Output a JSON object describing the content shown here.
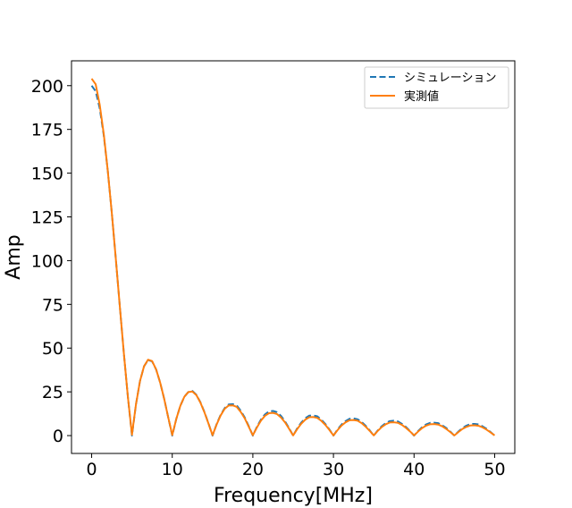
{
  "chart_data": {
    "type": "line",
    "xlabel": "Frequency[MHz]",
    "ylabel": "Amp",
    "xlim": [
      -2.5,
      52.5
    ],
    "ylim": [
      -10.2,
      214.2
    ],
    "xticks": [
      "0",
      "10",
      "20",
      "30",
      "40",
      "50"
    ],
    "yticks": [
      "0",
      "25",
      "50",
      "75",
      "100",
      "125",
      "150",
      "175",
      "200"
    ],
    "legend_position": "top-right",
    "grid": false,
    "series": [
      {
        "name": "シミュレーション",
        "color": "#1f77b4",
        "style": "dashed",
        "x": [
          0,
          0.5,
          1,
          1.5,
          2,
          2.5,
          3,
          3.5,
          4,
          4.5,
          5,
          5.5,
          6,
          6.5,
          7,
          7.5,
          8,
          8.5,
          9,
          9.5,
          10,
          10.5,
          11,
          11.5,
          12,
          12.5,
          13,
          13.5,
          14,
          14.5,
          15,
          15.5,
          16,
          16.5,
          17,
          17.5,
          18,
          18.5,
          19,
          19.5,
          20,
          20.5,
          21,
          21.5,
          22,
          22.5,
          23,
          23.5,
          24,
          24.5,
          25,
          25.5,
          26,
          26.5,
          27,
          27.5,
          28,
          28.5,
          29,
          29.5,
          30,
          30.5,
          31,
          31.5,
          32,
          32.5,
          33,
          33.5,
          34,
          34.5,
          35,
          35.5,
          36,
          36.5,
          37,
          37.5,
          38,
          38.5,
          39,
          39.5,
          40,
          40.5,
          41,
          41.5,
          42,
          42.5,
          43,
          43.5,
          44,
          44.5,
          45,
          45.5,
          46,
          46.5,
          47,
          47.5,
          48,
          48.5,
          49,
          49.5,
          50
        ],
        "y": [
          200.0,
          196.8,
          187.1,
          171.7,
          151.4,
          127.3,
          100.9,
          73.6,
          46.8,
          21.9,
          0.0,
          17.9,
          31.2,
          39.6,
          43.2,
          42.4,
          37.8,
          30.3,
          21.0,
          10.4,
          0.0,
          9.5,
          17.0,
          22.2,
          24.9,
          25.5,
          23.3,
          19.0,
          13.4,
          6.9,
          0.0,
          6.5,
          11.8,
          15.7,
          17.8,
          18.0,
          17.2,
          14.2,
          10.3,
          5.3,
          0.0,
          5.0,
          9.1,
          12.1,
          13.8,
          14.1,
          13.4,
          11.2,
          8.1,
          4.2,
          0.0,
          4.1,
          7.4,
          9.9,
          11.4,
          11.5,
          11.0,
          9.1,
          6.6,
          3.5,
          0.0,
          3.4,
          6.3,
          8.3,
          9.6,
          9.8,
          9.3,
          7.8,
          5.6,
          3.0,
          0.0,
          3.0,
          5.4,
          7.2,
          8.3,
          8.5,
          8.1,
          6.7,
          4.9,
          2.6,
          0.0,
          2.6,
          4.8,
          6.4,
          7.3,
          7.4,
          7.1,
          5.9,
          4.3,
          2.3,
          0.0,
          2.3,
          4.3,
          5.7,
          6.6,
          6.7,
          6.4,
          5.3,
          3.9,
          2.0,
          0.0
        ]
      },
      {
        "name": "実測値",
        "color": "#ff7f0e",
        "style": "solid",
        "x": [
          0,
          0.5,
          1,
          1.5,
          2,
          2.5,
          3,
          3.5,
          4,
          4.5,
          5,
          5.5,
          6,
          6.5,
          7,
          7.5,
          8,
          8.5,
          9,
          9.5,
          10,
          10.5,
          11,
          11.5,
          12,
          12.5,
          13,
          13.5,
          14,
          14.5,
          15,
          15.5,
          16,
          16.5,
          17,
          17.5,
          18,
          18.5,
          19,
          19.5,
          20,
          20.5,
          21,
          21.5,
          22,
          22.5,
          23,
          23.5,
          24,
          24.5,
          25,
          25.5,
          26,
          26.5,
          27,
          27.5,
          28,
          28.5,
          29,
          29.5,
          30,
          30.5,
          31,
          31.5,
          32,
          32.5,
          33,
          33.5,
          34,
          34.5,
          35,
          35.5,
          36,
          36.5,
          37,
          37.5,
          38,
          38.5,
          39,
          39.5,
          40,
          40.5,
          41,
          41.5,
          42,
          42.5,
          43,
          43.5,
          44,
          44.5,
          45,
          45.5,
          46,
          46.5,
          47,
          47.5,
          48,
          48.5,
          49,
          49.5,
          50
        ],
        "y": [
          204.0,
          200.8,
          189.1,
          172.5,
          151.4,
          127.3,
          100.9,
          73.6,
          46.8,
          21.9,
          0.5,
          17.9,
          31.2,
          39.6,
          43.4,
          42.6,
          37.8,
          30.3,
          21.0,
          10.4,
          0.3,
          9.5,
          17.0,
          22.2,
          24.9,
          25.2,
          23.1,
          18.8,
          13.2,
          6.8,
          0.2,
          6.3,
          11.5,
          15.3,
          17.2,
          17.3,
          16.4,
          13.5,
          9.8,
          5.0,
          0.2,
          4.6,
          8.5,
          11.3,
          12.8,
          13.0,
          12.3,
          10.3,
          7.5,
          3.9,
          0.1,
          3.7,
          6.8,
          9.1,
          10.5,
          10.6,
          10.1,
          8.4,
          6.1,
          3.2,
          0.1,
          3.1,
          5.7,
          7.6,
          8.8,
          8.9,
          8.5,
          7.1,
          5.1,
          2.7,
          0.1,
          2.7,
          4.9,
          6.5,
          7.5,
          7.6,
          7.3,
          6.1,
          4.4,
          2.4,
          0.1,
          2.3,
          4.3,
          5.7,
          6.5,
          6.6,
          6.3,
          5.3,
          3.8,
          2.0,
          0.1,
          2.0,
          3.8,
          5.0,
          5.8,
          5.9,
          5.6,
          4.7,
          3.4,
          1.8,
          0.1
        ]
      }
    ]
  }
}
